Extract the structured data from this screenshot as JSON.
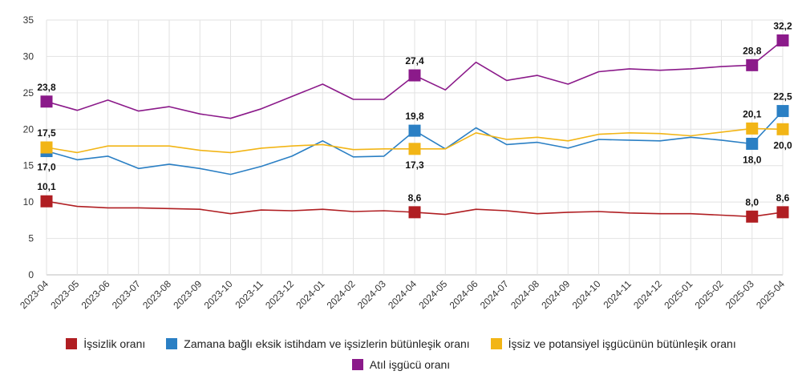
{
  "chart_data": {
    "type": "line",
    "title": "",
    "xlabel": "",
    "ylabel": "",
    "ylim": [
      0,
      35
    ],
    "yticks": [
      0,
      5,
      10,
      15,
      20,
      25,
      30,
      35
    ],
    "grid": true,
    "legend_position": "bottom",
    "x": [
      "2023-04",
      "2023-05",
      "2023-06",
      "2023-07",
      "2023-08",
      "2023-09",
      "2023-10",
      "2023-11",
      "2023-12",
      "2024-01",
      "2024-02",
      "2024-03",
      "2024-04",
      "2024-05",
      "2024-06",
      "2024-07",
      "2024-08",
      "2024-09",
      "2024-10",
      "2024-11",
      "2024-12",
      "2025-01",
      "2025-02",
      "2025-03",
      "2025-04"
    ],
    "series": [
      {
        "name": "İşsizlik oranı",
        "color": "#b01e22",
        "values": [
          10.1,
          9.4,
          9.2,
          9.2,
          9.1,
          9.0,
          8.4,
          8.9,
          8.8,
          9.0,
          8.7,
          8.8,
          8.6,
          8.3,
          9.0,
          8.8,
          8.4,
          8.6,
          8.7,
          8.5,
          8.4,
          8.4,
          8.2,
          8.0,
          8.6
        ],
        "labels": [
          {
            "index": 0,
            "text": "10,1",
            "pos": "above"
          },
          {
            "index": 12,
            "text": "8,6",
            "pos": "above"
          },
          {
            "index": 23,
            "text": "8,0",
            "pos": "above"
          },
          {
            "index": 24,
            "text": "8,6",
            "pos": "above"
          }
        ]
      },
      {
        "name": "Zamana bağlı eksik istihdam ve işsizlerin bütünleşik oranı",
        "color": "#2a7fc4",
        "values": [
          17.0,
          15.8,
          16.3,
          14.6,
          15.2,
          14.6,
          13.8,
          14.9,
          16.3,
          18.4,
          16.2,
          16.3,
          19.8,
          17.3,
          20.2,
          17.9,
          18.2,
          17.4,
          18.6,
          18.5,
          18.4,
          18.9,
          18.5,
          18.0,
          22.5
        ],
        "labels": [
          {
            "index": 0,
            "text": "17,0",
            "pos": "below"
          },
          {
            "index": 12,
            "text": "19,8",
            "pos": "above"
          },
          {
            "index": 23,
            "text": "18,0",
            "pos": "below"
          },
          {
            "index": 24,
            "text": "22,5",
            "pos": "above"
          }
        ]
      },
      {
        "name": "İşsiz ve potansiyel işgücünün bütünleşik oranı",
        "color": "#f2b516",
        "values": [
          17.5,
          16.8,
          17.7,
          17.7,
          17.7,
          17.1,
          16.8,
          17.4,
          17.7,
          17.9,
          17.2,
          17.3,
          17.3,
          17.3,
          19.5,
          18.6,
          18.9,
          18.4,
          19.3,
          19.5,
          19.4,
          19.1,
          19.6,
          20.1,
          20.0
        ],
        "labels": [
          {
            "index": 0,
            "text": "17,5",
            "pos": "above"
          },
          {
            "index": 12,
            "text": "17,3",
            "pos": "below"
          },
          {
            "index": 23,
            "text": "20,1",
            "pos": "above"
          },
          {
            "index": 24,
            "text": "20,0",
            "pos": "below"
          }
        ]
      },
      {
        "name": "Atıl işgücü oranı",
        "color": "#8b1a8a",
        "values": [
          23.8,
          22.6,
          24.0,
          22.5,
          23.1,
          22.1,
          21.5,
          22.8,
          24.5,
          26.2,
          24.1,
          24.1,
          27.4,
          25.4,
          29.2,
          26.7,
          27.4,
          26.2,
          27.9,
          28.3,
          28.1,
          28.3,
          28.6,
          28.8,
          32.2
        ],
        "labels": [
          {
            "index": 0,
            "text": "23,8",
            "pos": "above"
          },
          {
            "index": 12,
            "text": "27,4",
            "pos": "above"
          },
          {
            "index": 23,
            "text": "28,8",
            "pos": "above"
          },
          {
            "index": 24,
            "text": "32,2",
            "pos": "above"
          }
        ]
      }
    ]
  },
  "legend": {
    "row1": [
      {
        "label": "İşsizlik oranı",
        "color": "#b01e22"
      },
      {
        "label": "Zamana bağlı eksik istihdam ve işsizlerin bütünleşik oranı",
        "color": "#2a7fc4"
      },
      {
        "label": "İşsiz ve potansiyel işgücünün bütünleşik oranı",
        "color": "#f2b516"
      }
    ],
    "row2": [
      {
        "label": "Atıl işgücü oranı",
        "color": "#8b1a8a"
      }
    ]
  }
}
